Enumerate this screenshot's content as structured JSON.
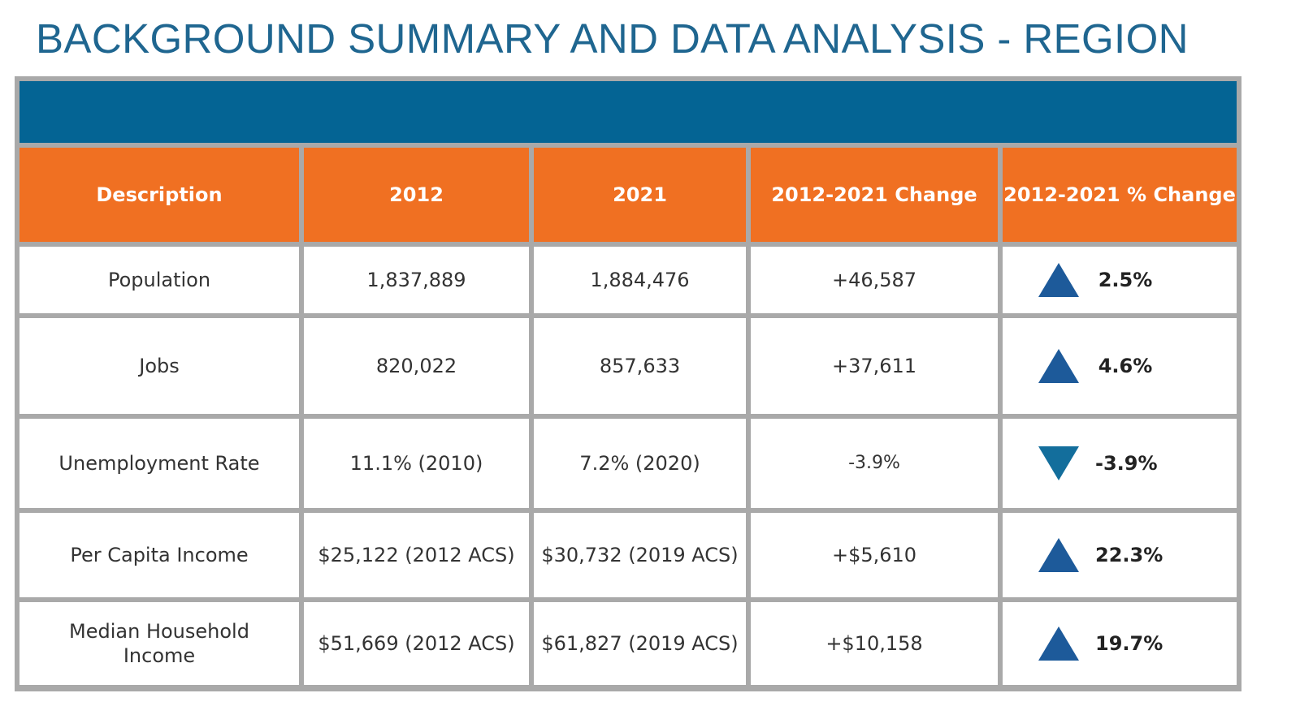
{
  "title": "BACKGROUND SUMMARY AND DATA ANALYSIS - REGION",
  "colors": {
    "title": "#1f6690",
    "band": "#046494",
    "header": "#f07022",
    "grid": "#a9a9a9",
    "arrow_up": "#1d5a9a",
    "arrow_down": "#136e9c"
  },
  "table": {
    "headers": [
      "Description",
      "2012",
      "2021",
      "2012-2021 Change",
      "2012-2021 % Change"
    ],
    "rows": [
      {
        "description": "Population",
        "y2012": "1,837,889",
        "y2021": "1,884,476",
        "change": "+46,587",
        "pct": "2.5%",
        "trend_icon": "triangle-up-icon"
      },
      {
        "description": "Jobs",
        "y2012": "820,022",
        "y2021": "857,633",
        "change": "+37,611",
        "pct": "4.6%",
        "trend_icon": "triangle-up-icon"
      },
      {
        "description": "Unemployment Rate",
        "y2012": "11.1% (2010)",
        "y2021": "7.2% (2020)",
        "change": "-3.9%",
        "pct": "-3.9%",
        "trend_icon": "triangle-down-icon"
      },
      {
        "description": "Per Capita Income",
        "y2012": "$25,122 (2012 ACS)",
        "y2021": "$30,732 (2019 ACS)",
        "change": "+$5,610",
        "pct": "22.3%",
        "trend_icon": "triangle-up-icon"
      },
      {
        "description": "Median Household Income",
        "y2012": "$51,669 (2012 ACS)",
        "y2021": "$61,827 (2019 ACS)",
        "change": "+$10,158",
        "pct": "19.7%",
        "trend_icon": "triangle-up-icon"
      }
    ]
  }
}
